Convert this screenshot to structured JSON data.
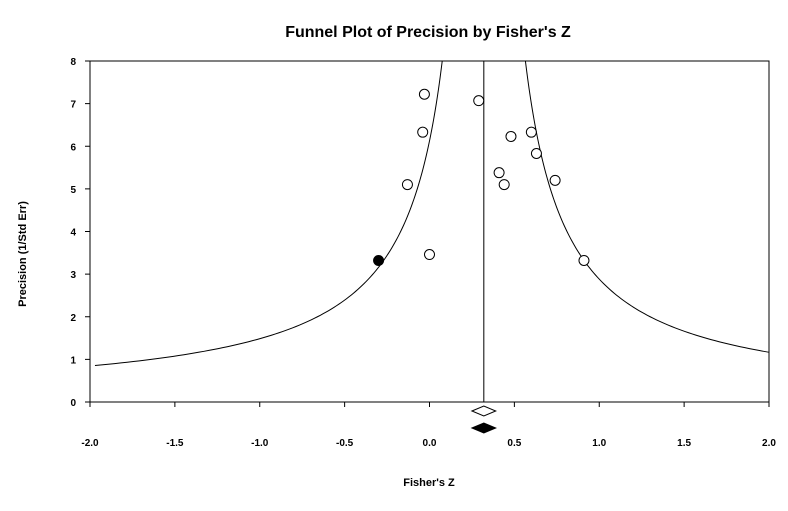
{
  "chart_data": {
    "type": "scatter",
    "title": "Funnel Plot of Precision by Fisher's Z",
    "xlabel": "Fisher's Z",
    "ylabel": "Precision (1/Std Err)",
    "xlim": [
      -2.0,
      2.0
    ],
    "ylim": [
      0,
      8
    ],
    "xticks": [
      "-2.0",
      "-1.5",
      "-1.0",
      "-0.5",
      "0.0",
      "0.5",
      "1.0",
      "1.5",
      "2.0"
    ],
    "yticks": [
      "0",
      "1",
      "2",
      "3",
      "4",
      "5",
      "6",
      "7",
      "8"
    ],
    "grid": false,
    "observed_points": [
      {
        "x": -0.03,
        "y": 7.22
      },
      {
        "x": 0.29,
        "y": 7.07
      },
      {
        "x": -0.04,
        "y": 6.33
      },
      {
        "x": 0.48,
        "y": 6.23
      },
      {
        "x": 0.6,
        "y": 6.33
      },
      {
        "x": 0.63,
        "y": 5.83
      },
      {
        "x": -0.13,
        "y": 5.1
      },
      {
        "x": 0.41,
        "y": 5.38
      },
      {
        "x": 0.44,
        "y": 5.1
      },
      {
        "x": 0.74,
        "y": 5.2
      },
      {
        "x": 0.0,
        "y": 3.46
      },
      {
        "x": 0.91,
        "y": 3.32
      }
    ],
    "imputed_points": [
      {
        "x": -0.3,
        "y": 3.32
      }
    ],
    "combined_effect": 0.32,
    "funnel": {
      "center": 0.32,
      "z": 1.96,
      "min_precision": 0.5
    },
    "observed_summary": {
      "x": 0.32,
      "half_width": 0.07
    },
    "adjusted_summary": {
      "x": 0.32,
      "half_width": 0.07
    }
  }
}
